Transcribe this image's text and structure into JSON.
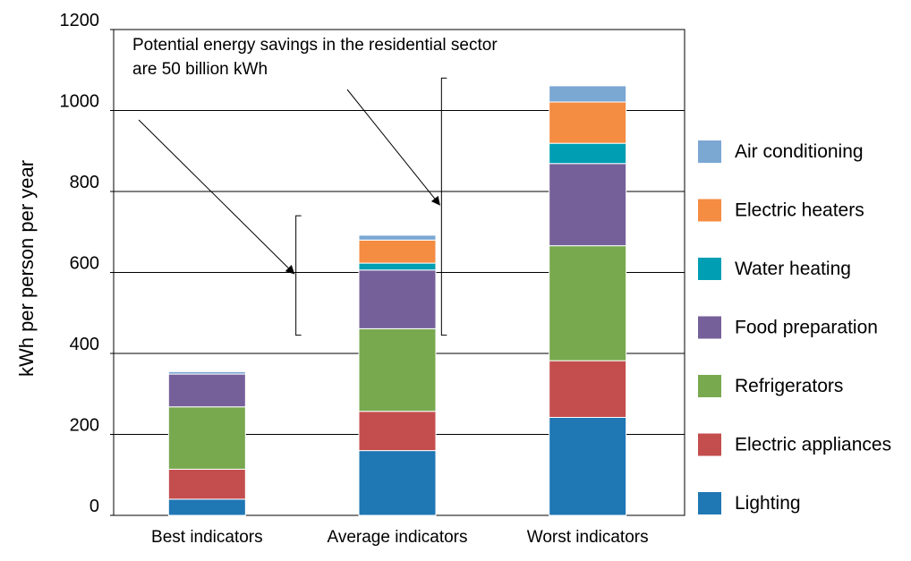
{
  "chart_data": {
    "type": "bar",
    "stacked": true,
    "ylabel": "kWh per person per year",
    "ylim": [
      0,
      1200
    ],
    "yticks": [
      {
        "value": 0,
        "label": "0"
      },
      {
        "value": 200,
        "label": "200"
      },
      {
        "value": 400,
        "label": "400"
      },
      {
        "value": 600,
        "label": "600"
      },
      {
        "value": 800,
        "label": "800"
      },
      {
        "value": 1000,
        "label": "1000"
      },
      {
        "value": 1200,
        "label": "1200"
      }
    ],
    "grid": true,
    "legend_position": "right",
    "categories": [
      "Best indicators",
      "Average indicators",
      "Worst indicators"
    ],
    "series": [
      {
        "name": "Lighting",
        "color": "#1f77b4",
        "values": [
          40,
          160,
          242
        ]
      },
      {
        "name": "Electric appliances",
        "color": "#c44e4e",
        "values": [
          74,
          97,
          140
        ]
      },
      {
        "name": "Refrigerators",
        "color": "#78a94f",
        "values": [
          154,
          204,
          284
        ]
      },
      {
        "name": "Food preparation",
        "color": "#76609a",
        "values": [
          81,
          145,
          203
        ]
      },
      {
        "name": "Water heating",
        "color": "#009eb3",
        "values": [
          0,
          17,
          50
        ]
      },
      {
        "name": "Electric heaters",
        "color": "#f48c42",
        "values": [
          0,
          57,
          102
        ]
      },
      {
        "name": "Air conditioning",
        "color": "#7ba7d3",
        "values": [
          6,
          12,
          40
        ]
      }
    ],
    "annotation": {
      "lines": [
        "Potential energy savings in the residential sector",
        "are 50 billion kWh"
      ]
    },
    "brackets": [
      {
        "from": 445,
        "to": 740
      },
      {
        "from": 445,
        "to": 1080
      }
    ]
  }
}
